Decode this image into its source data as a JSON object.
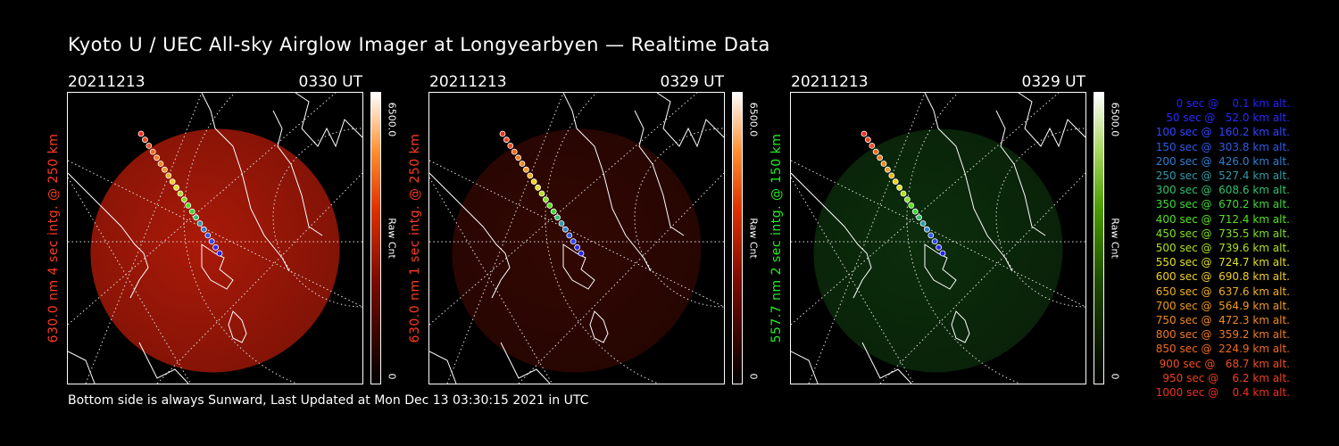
{
  "title": "Kyoto U / UEC All-sky Airglow Imager at Longyearbyen — Realtime Data",
  "panels": [
    {
      "date": "20211213",
      "time": "0330 UT",
      "label": "630.0 nm 4 sec intg. @ 250 km",
      "label_color": "#ff3b1f",
      "cbar_max": "6500.0",
      "cbar_unit": "Raw Cnt",
      "cbar_min": "0",
      "tint": "red",
      "intensity": 0.85
    },
    {
      "date": "20211213",
      "time": "0329 UT",
      "label": "630.0 nm 1 sec intg. @ 250 km",
      "label_color": "#ff3b1f",
      "cbar_max": "6500.0",
      "cbar_unit": "Raw Cnt",
      "cbar_min": "0",
      "tint": "red",
      "intensity": 0.25
    },
    {
      "date": "20211213",
      "time": "0329 UT",
      "label": "557.7 nm 2 sec intg. @ 150 km",
      "label_color": "#22ee22",
      "cbar_max": "6500.0",
      "cbar_unit": "Raw Cnt",
      "cbar_min": "0",
      "tint": "green",
      "intensity": 0.3
    }
  ],
  "footer": "Bottom side is always Sunward, Last Updated at Mon Dec 13 03:30:15 2021 in UTC",
  "legend": [
    {
      "text": "   0 sec @    0.1 km alt.",
      "color": "#2222ff"
    },
    {
      "text": "  50 sec @   52.0 km alt.",
      "color": "#2a2aff"
    },
    {
      "text": " 100 sec @  160.2 km alt.",
      "color": "#2f45ff"
    },
    {
      "text": " 150 sec @  303.8 km alt.",
      "color": "#2f5ae8"
    },
    {
      "text": " 200 sec @  426.0 km alt.",
      "color": "#2f7fd0"
    },
    {
      "text": " 250 sec @  527.4 km alt.",
      "color": "#2f9aa8"
    },
    {
      "text": " 300 sec @  608.6 km alt.",
      "color": "#30c070"
    },
    {
      "text": " 350 sec @  670.2 km alt.",
      "color": "#3ed83a"
    },
    {
      "text": " 400 sec @  712.4 km alt.",
      "color": "#55e020"
    },
    {
      "text": " 450 sec @  735.5 km alt.",
      "color": "#80e020"
    },
    {
      "text": " 500 sec @  739.6 km alt.",
      "color": "#b0e020"
    },
    {
      "text": " 550 sec @  724.7 km alt.",
      "color": "#e0e020"
    },
    {
      "text": " 600 sec @  690.8 km alt.",
      "color": "#f0d020"
    },
    {
      "text": " 650 sec @  637.6 km alt.",
      "color": "#f0b020"
    },
    {
      "text": " 700 sec @  564.9 km alt.",
      "color": "#f09a20"
    },
    {
      "text": " 750 sec @  472.3 km alt.",
      "color": "#f08a20"
    },
    {
      "text": " 800 sec @  359.2 km alt.",
      "color": "#f07a20"
    },
    {
      "text": " 850 sec @  224.9 km alt.",
      "color": "#f06a20"
    },
    {
      "text": " 900 sec @   68.7 km alt.",
      "color": "#f05020"
    },
    {
      "text": " 950 sec @    6.2 km alt.",
      "color": "#f04020"
    },
    {
      "text": "1000 sec @    0.4 km alt.",
      "color": "#f03020"
    }
  ]
}
